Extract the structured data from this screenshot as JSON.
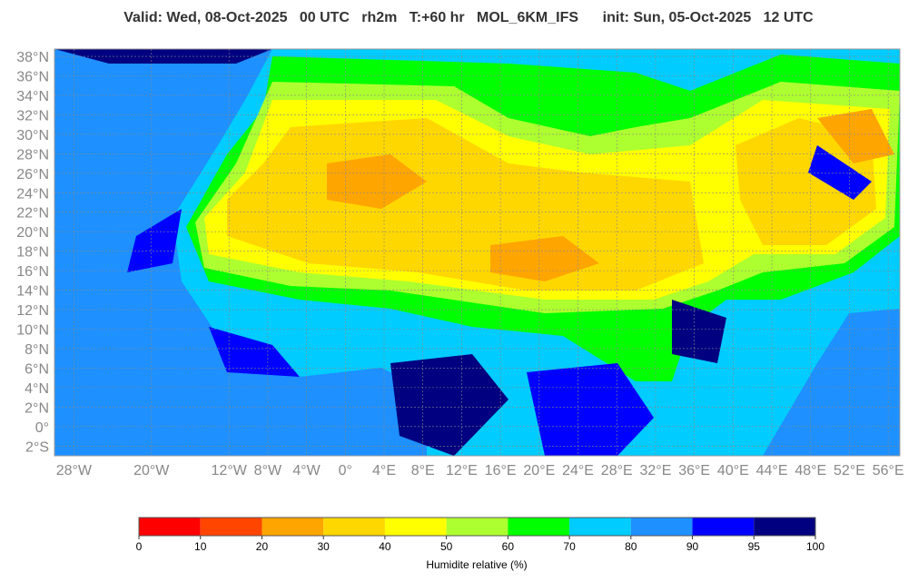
{
  "header": {
    "title": "Valid: Wed, 08-Oct-2025   00 UTC   rh2m   T:+60 hr   MOL_6KM_IFS      init: Sun, 05-Oct-2025   12 UTC"
  },
  "map": {
    "lon_range": [
      -30,
      57.2
    ],
    "lat_range": [
      -3,
      38.75
    ],
    "lat_ticks": [
      {
        "value": 38,
        "label": "38°N"
      },
      {
        "value": 36,
        "label": "36°N"
      },
      {
        "value": 34,
        "label": "34°N"
      },
      {
        "value": 32,
        "label": "32°N"
      },
      {
        "value": 30,
        "label": "30°N"
      },
      {
        "value": 28,
        "label": "28°N"
      },
      {
        "value": 26,
        "label": "26°N"
      },
      {
        "value": 24,
        "label": "24°N"
      },
      {
        "value": 22,
        "label": "22°N"
      },
      {
        "value": 20,
        "label": "20°N"
      },
      {
        "value": 18,
        "label": "18°N"
      },
      {
        "value": 16,
        "label": "16°N"
      },
      {
        "value": 14,
        "label": "14°N"
      },
      {
        "value": 12,
        "label": "12°N"
      },
      {
        "value": 10,
        "label": "10°N"
      },
      {
        "value": 8,
        "label": "8°N"
      },
      {
        "value": 6,
        "label": "6°N"
      },
      {
        "value": 4,
        "label": "4°N"
      },
      {
        "value": 2,
        "label": "2°N"
      },
      {
        "value": 0,
        "label": "0°"
      },
      {
        "value": -2,
        "label": "2°S"
      }
    ],
    "lon_ticks": [
      {
        "value": -28,
        "label": "28°W"
      },
      {
        "value": -20,
        "label": "20°W"
      },
      {
        "value": -12,
        "label": "12°W"
      },
      {
        "value": -8,
        "label": "8°W"
      },
      {
        "value": -4,
        "label": "4°W"
      },
      {
        "value": 0,
        "label": "0°"
      },
      {
        "value": 4,
        "label": "4°E"
      },
      {
        "value": 8,
        "label": "8°E"
      },
      {
        "value": 12,
        "label": "12°E"
      },
      {
        "value": 16,
        "label": "16°E"
      },
      {
        "value": 20,
        "label": "20°E"
      },
      {
        "value": 24,
        "label": "24°E"
      },
      {
        "value": 28,
        "label": "28°E"
      },
      {
        "value": 32,
        "label": "32°E"
      },
      {
        "value": 36,
        "label": "36°E"
      },
      {
        "value": 40,
        "label": "40°E"
      },
      {
        "value": 44,
        "label": "44°E"
      },
      {
        "value": 48,
        "label": "48°E"
      },
      {
        "value": 52,
        "label": "52°E"
      },
      {
        "value": 56,
        "label": "56°E"
      }
    ]
  },
  "colorbar": {
    "bounds": [
      0,
      10,
      20,
      30,
      40,
      50,
      60,
      70,
      80,
      90,
      95,
      100
    ],
    "colors": [
      "#ff0000",
      "#ff4500",
      "#ffa500",
      "#ffd700",
      "#ffff00",
      "#adff2f",
      "#00ff00",
      "#00ccff",
      "#1e90ff",
      "#0000ff",
      "#000080"
    ],
    "label": "Humidite relative (%)"
  }
}
